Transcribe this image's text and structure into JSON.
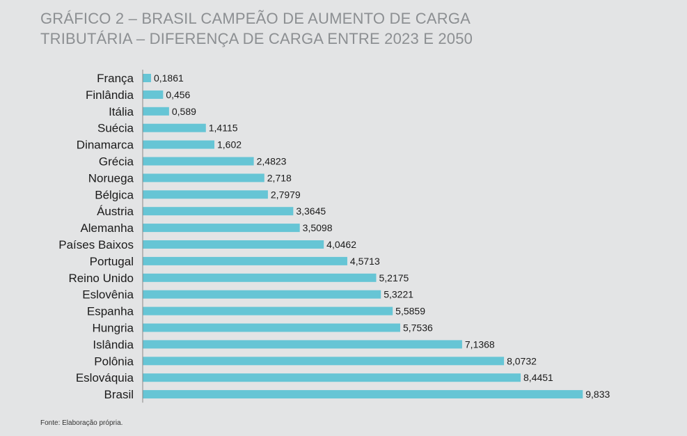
{
  "chart_data": {
    "type": "bar",
    "orientation": "horizontal",
    "title_lines": [
      "GRÁFICO 2 – BRASIL CAMPEÃO DE AUMENTO DE CARGA",
      "TRIBUTÁRIA – DIFERENÇA DE CARGA ENTRE 2023 E 2050"
    ],
    "categories": [
      "França",
      "Finlândia",
      "Itália",
      "Suécia",
      "Dinamarca",
      "Grécia",
      "Noruega",
      "Bélgica",
      "Áustria",
      "Alemanha",
      "Países Baixos",
      "Portugal",
      "Reino Unido",
      "Eslovênia",
      "Espanha",
      "Hungria",
      "Islândia",
      "Polônia",
      "Eslováquia",
      "Brasil"
    ],
    "values": [
      0.1861,
      0.456,
      0.589,
      1.4115,
      1.602,
      2.4823,
      2.718,
      2.7979,
      3.3645,
      3.5098,
      4.0462,
      4.5713,
      5.2175,
      5.3221,
      5.5859,
      5.7536,
      7.1368,
      8.0732,
      8.4451,
      9.833
    ],
    "value_labels": [
      "0,1861",
      "0,456",
      "0,589",
      "1,4115",
      "1,602",
      "2,4823",
      "2,718",
      "2,7979",
      "3,3645",
      "3,5098",
      "4,0462",
      "4,5713",
      "5,2175",
      "5,3221",
      "5,5859",
      "5,7536",
      "7,1368",
      "8,0732",
      "8,4451",
      "9,833"
    ],
    "bar_color": "#66c5d5",
    "xlim": [
      0,
      10
    ],
    "grid": false,
    "legend": "none"
  },
  "source": "Fonte: Elaboração própria."
}
